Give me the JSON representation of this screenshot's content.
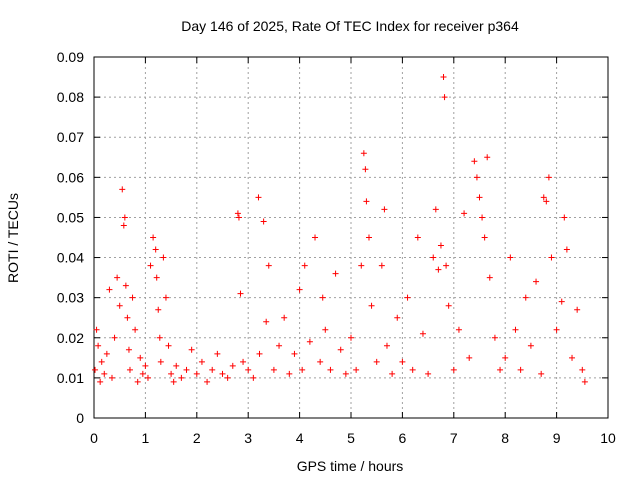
{
  "chart_data": {
    "type": "scatter",
    "title": "Day 146 of 2025, Rate Of TEC Index for receiver p364",
    "xlabel": "GPS time / hours",
    "ylabel": "ROTI / TECUs",
    "xlim": [
      0,
      10
    ],
    "ylim": [
      0,
      0.09
    ],
    "xticks": [
      0,
      1,
      2,
      3,
      4,
      5,
      6,
      7,
      8,
      9,
      10
    ],
    "xtick_labels": [
      "0",
      "1",
      "2",
      "3",
      "4",
      "5",
      "6",
      "7",
      "8",
      "9",
      "10"
    ],
    "yticks": [
      0,
      0.01,
      0.02,
      0.03,
      0.04,
      0.05,
      0.06,
      0.07,
      0.08,
      0.09
    ],
    "ytick_labels": [
      "0",
      "0.01",
      "0.02",
      "0.03",
      "0.04",
      "0.05",
      "0.06",
      "0.07",
      "0.08",
      "0.09"
    ],
    "grid": true,
    "marker": "+",
    "marker_color": "#ff0000",
    "series": [
      {
        "name": "ROTI",
        "x": [
          0.02,
          0.05,
          0.08,
          0.12,
          0.15,
          0.2,
          0.25,
          0.3,
          0.35,
          0.4,
          0.45,
          0.5,
          0.55,
          0.58,
          0.6,
          0.62,
          0.65,
          0.68,
          0.7,
          0.75,
          0.8,
          0.85,
          0.9,
          0.95,
          1.0,
          1.05,
          1.1,
          1.15,
          1.2,
          1.22,
          1.25,
          1.28,
          1.3,
          1.35,
          1.4,
          1.45,
          1.5,
          1.55,
          1.6,
          1.7,
          1.8,
          1.9,
          2.0,
          2.1,
          2.2,
          2.3,
          2.4,
          2.5,
          2.6,
          2.7,
          2.8,
          2.82,
          2.85,
          2.9,
          3.0,
          3.1,
          3.2,
          3.22,
          3.3,
          3.35,
          3.4,
          3.5,
          3.6,
          3.7,
          3.8,
          3.9,
          4.0,
          4.05,
          4.1,
          4.2,
          4.3,
          4.4,
          4.45,
          4.5,
          4.6,
          4.7,
          4.8,
          4.9,
          5.0,
          5.1,
          5.2,
          5.25,
          5.28,
          5.3,
          5.35,
          5.4,
          5.5,
          5.6,
          5.65,
          5.7,
          5.8,
          5.9,
          6.0,
          6.1,
          6.2,
          6.3,
          6.4,
          6.5,
          6.6,
          6.65,
          6.7,
          6.75,
          6.8,
          6.82,
          6.85,
          6.9,
          7.0,
          7.1,
          7.2,
          7.3,
          7.4,
          7.45,
          7.5,
          7.55,
          7.6,
          7.65,
          7.7,
          7.8,
          7.9,
          8.0,
          8.1,
          8.2,
          8.3,
          8.4,
          8.5,
          8.6,
          8.7,
          8.75,
          8.8,
          8.85,
          8.9,
          9.0,
          9.1,
          9.15,
          9.2,
          9.3,
          9.4,
          9.5,
          9.55
        ],
        "y": [
          0.012,
          0.022,
          0.018,
          0.009,
          0.014,
          0.011,
          0.016,
          0.032,
          0.01,
          0.02,
          0.035,
          0.028,
          0.057,
          0.048,
          0.05,
          0.033,
          0.025,
          0.017,
          0.012,
          0.03,
          0.022,
          0.009,
          0.015,
          0.011,
          0.013,
          0.01,
          0.038,
          0.045,
          0.042,
          0.035,
          0.027,
          0.02,
          0.014,
          0.04,
          0.03,
          0.018,
          0.011,
          0.009,
          0.013,
          0.01,
          0.012,
          0.017,
          0.011,
          0.014,
          0.009,
          0.012,
          0.016,
          0.011,
          0.01,
          0.013,
          0.051,
          0.05,
          0.031,
          0.014,
          0.012,
          0.01,
          0.055,
          0.016,
          0.049,
          0.024,
          0.038,
          0.012,
          0.018,
          0.025,
          0.011,
          0.016,
          0.032,
          0.012,
          0.038,
          0.019,
          0.045,
          0.014,
          0.03,
          0.022,
          0.012,
          0.036,
          0.017,
          0.011,
          0.02,
          0.012,
          0.038,
          0.066,
          0.062,
          0.054,
          0.045,
          0.028,
          0.014,
          0.038,
          0.052,
          0.018,
          0.011,
          0.025,
          0.014,
          0.03,
          0.012,
          0.045,
          0.021,
          0.011,
          0.04,
          0.052,
          0.037,
          0.043,
          0.085,
          0.08,
          0.038,
          0.028,
          0.012,
          0.022,
          0.051,
          0.015,
          0.064,
          0.06,
          0.055,
          0.05,
          0.045,
          0.065,
          0.035,
          0.02,
          0.012,
          0.015,
          0.04,
          0.022,
          0.012,
          0.03,
          0.018,
          0.034,
          0.011,
          0.055,
          0.054,
          0.06,
          0.04,
          0.022,
          0.029,
          0.05,
          0.042,
          0.015,
          0.027,
          0.012,
          0.009
        ]
      }
    ]
  }
}
